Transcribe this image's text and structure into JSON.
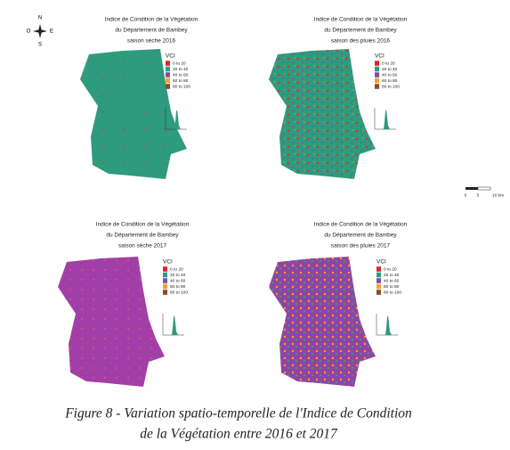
{
  "panels": [
    {
      "title": [
        "Indice de Condition de la Végétation",
        "du Département de Bambey",
        "saison sèche 2016"
      ],
      "legend": {
        "title": "VCI",
        "items": [
          {
            "label": "0 to 20",
            "color": "#e0262b"
          },
          {
            "label": "20 to 40",
            "color": "#2e9c80"
          },
          {
            "label": "40 to 60",
            "color": "#7b4fa4"
          },
          {
            "label": "60 to 80",
            "color": "#f3a233"
          },
          {
            "label": "80 to 100",
            "color": "#8c4a2c"
          }
        ]
      }
    },
    {
      "title": [
        "Indice de Condition de la Végétation",
        "du Département de Bambey",
        "saison des pluies 2016"
      ],
      "legend": {
        "title": "VCI",
        "items": [
          {
            "label": "0 to 20",
            "color": "#e0262b"
          },
          {
            "label": "20 to 40",
            "color": "#2e9c80"
          },
          {
            "label": "40 to 60",
            "color": "#7b4fa4"
          },
          {
            "label": "60 to 80",
            "color": "#f3a233"
          },
          {
            "label": "80 to 100",
            "color": "#8c4a2c"
          }
        ]
      }
    },
    {
      "title": [
        "Indice de Condition de la Végétation",
        "du Département de Bambey",
        "saison sèche 2017"
      ],
      "legend": {
        "title": "VCI",
        "items": [
          {
            "label": "0 to 20",
            "color": "#e0262b"
          },
          {
            "label": "20 to 40",
            "color": "#2e9c80"
          },
          {
            "label": "40 to 60",
            "color": "#7b4fa4"
          },
          {
            "label": "60 to 80",
            "color": "#f3a233"
          },
          {
            "label": "80 to 100",
            "color": "#8c4a2c"
          }
        ]
      }
    },
    {
      "title": [
        "Indice de Condition de la Végétation",
        "du Département de Bambey",
        "saison des pluies 2017"
      ],
      "legend": {
        "title": "VCI",
        "items": [
          {
            "label": "0 to 20",
            "color": "#e0262b"
          },
          {
            "label": "20 to 40",
            "color": "#2e9c80"
          },
          {
            "label": "40 to 60",
            "color": "#7b4fa4"
          },
          {
            "label": "60 to 80",
            "color": "#f3a233"
          },
          {
            "label": "80 to 100",
            "color": "#8c4a2c"
          }
        ]
      }
    }
  ],
  "compass": {
    "n": "N",
    "s": "S",
    "e": "E",
    "w": "O"
  },
  "scale_bar": {
    "labels": [
      "0",
      "5",
      "10 km"
    ]
  },
  "caption": [
    "Figure 8 - Variation spatio-temporelle de l'Indice de Condition",
    "de la Végétation entre 2016 et 2017"
  ]
}
